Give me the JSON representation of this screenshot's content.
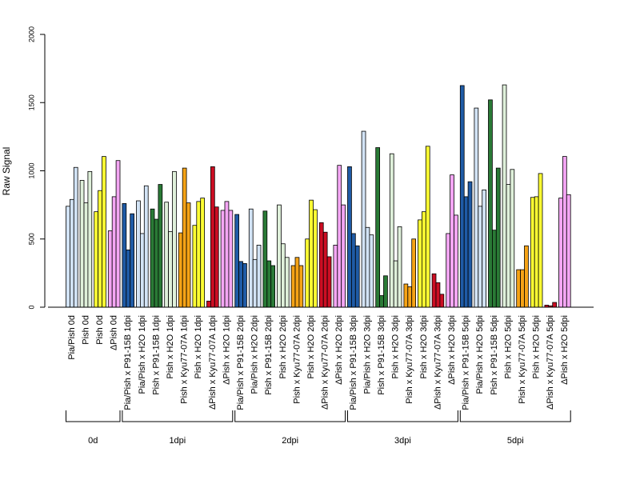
{
  "chart_data": {
    "type": "bar",
    "ylabel": "Raw Signal",
    "ylim": [
      0,
      2000
    ],
    "yticks": [
      0,
      500,
      1000,
      1500,
      2000
    ],
    "grid": false,
    "categories": [
      "Pia/Pish 0d",
      "Pish 0d",
      "Pish 0d",
      "ΔPish 0d",
      "Pia/Pish x P91-15B 1dpi",
      "Pia/Pish x H2O 1dpi",
      "Pish x P91-15B 1dpi",
      "Pish x H2O 1dpi",
      "Pish x Kyu77-07A 1dpi",
      "Pish x H2O 1dpi",
      "ΔPish x Kyu77-07A 1dpi",
      "ΔPish x H2O 1dpi",
      "Pia/Pish x P91-15B 2dpi",
      "Pia/Pish x H2O 2dpi",
      "Pish x P91-15B 2dpi",
      "Pish x H2O 2dpi",
      "Pish x Kyu77-07A 2dpi",
      "Pish x H2O 2dpi",
      "ΔPish x Kyu77-07A 2dpi",
      "ΔPish x H2O 2dpi",
      "Pia/Pish x P91-15B 3dpi",
      "Pia/Pish x H2O 3dpi",
      "Pish x P91-15B 3dpi",
      "Pish x H2O 3dpi",
      "Pish x Kyu77-07A 3dpi",
      "Pish x H2O 3dpi",
      "ΔPish x Kyu77-07A 3dpi",
      "ΔPish x H2O 3dpi",
      "Pia/Pish x P91-15B 5dpi",
      "Pia/Pish x H2O 5dpi",
      "Pish x P91-15B 5dpi",
      "Pish x H2O 5dpi",
      "Pish x Kyu77-07A 5dpi",
      "Pish x H2O 5dpi",
      "ΔPish x Kyu77-07A 5dpi",
      "ΔPish x H2O 5dpi"
    ],
    "values": [
      [
        740,
        790,
        1025
      ],
      [
        930,
        765,
        995
      ],
      [
        700,
        855,
        1105
      ],
      [
        560,
        810,
        1075
      ],
      [
        760,
        420,
        685
      ],
      [
        780,
        540,
        890
      ],
      [
        720,
        645,
        900
      ],
      [
        770,
        555,
        995
      ],
      [
        545,
        1020,
        765
      ],
      [
        600,
        775,
        800
      ],
      [
        45,
        1030,
        735
      ],
      [
        710,
        775,
        710
      ],
      [
        680,
        335,
        320
      ],
      [
        720,
        350,
        455
      ],
      [
        705,
        340,
        305
      ],
      [
        750,
        465,
        365
      ],
      [
        305,
        365,
        305
      ],
      [
        500,
        785,
        715
      ],
      [
        620,
        550,
        370
      ],
      [
        455,
        1040,
        750
      ],
      [
        1030,
        540,
        450
      ],
      [
        1290,
        585,
        530
      ],
      [
        1170,
        85,
        230
      ],
      [
        1125,
        340,
        590
      ],
      [
        170,
        150,
        500
      ],
      [
        640,
        700,
        1180
      ],
      [
        245,
        180,
        95
      ],
      [
        540,
        970,
        675
      ],
      [
        1625,
        810,
        920
      ],
      [
        1460,
        740,
        860
      ],
      [
        1520,
        565,
        1020
      ],
      [
        1630,
        900,
        1010
      ],
      [
        275,
        275,
        450
      ],
      [
        805,
        810,
        980
      ],
      [
        15,
        10,
        35
      ],
      [
        800,
        1105,
        825
      ]
    ],
    "colors": [
      "#d2e3f5",
      "#dff0da",
      "#ffff33",
      "#f4a6f4",
      "#1f5ba6",
      "#d2e3f5",
      "#2a7a36",
      "#dff0da",
      "#f5a316",
      "#ffff33",
      "#cc0e23",
      "#f4a6f4",
      "#1f5ba6",
      "#d2e3f5",
      "#2a7a36",
      "#dff0da",
      "#f5a316",
      "#ffff33",
      "#cc0e23",
      "#f4a6f4",
      "#1f5ba6",
      "#d2e3f5",
      "#2a7a36",
      "#dff0da",
      "#f5a316",
      "#ffff33",
      "#cc0e23",
      "#f4a6f4",
      "#1f5ba6",
      "#d2e3f5",
      "#2a7a36",
      "#dff0da",
      "#f5a316",
      "#ffff33",
      "#cc0e23",
      "#f4a6f4"
    ],
    "groups": [
      {
        "label": "0d",
        "count": 4
      },
      {
        "label": "1dpi",
        "count": 8
      },
      {
        "label": "2dpi",
        "count": 8
      },
      {
        "label": "3dpi",
        "count": 8
      },
      {
        "label": "5dpi",
        "count": 8
      }
    ]
  }
}
